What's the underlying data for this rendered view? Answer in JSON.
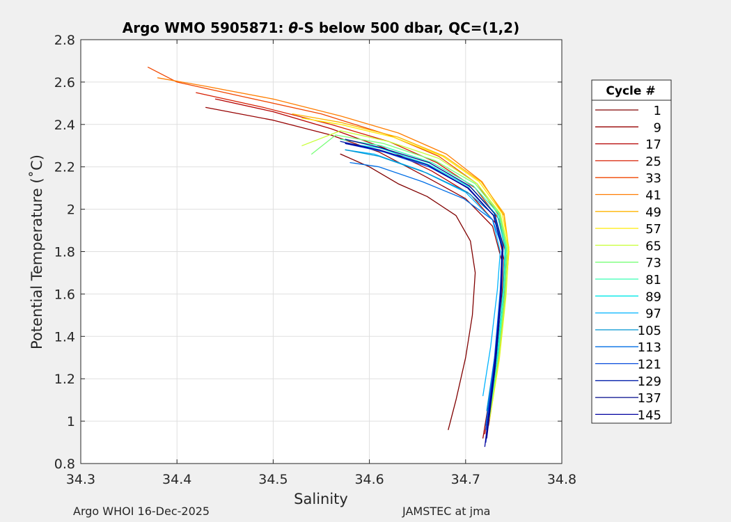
{
  "chart_data": {
    "type": "line",
    "title_parts": [
      "Argo WMO 5905871: ",
      "θ",
      "-S below 500 dbar,  QC=(1,2)"
    ],
    "xlabel": "Salinity",
    "ylabel": "Potential Temperature (˚C)",
    "xlim": [
      34.3,
      34.8
    ],
    "ylim": [
      0.8,
      2.8
    ],
    "xticks": [
      34.3,
      34.4,
      34.5,
      34.6,
      34.7,
      34.8
    ],
    "xtick_labels": [
      "34.3",
      "34.4",
      "34.5",
      "34.6",
      "34.7",
      "34.8"
    ],
    "yticks": [
      0.8,
      1,
      1.2,
      1.4,
      1.6,
      1.8,
      2,
      2.2,
      2.4,
      2.6,
      2.8
    ],
    "ytick_labels": [
      "0.8",
      "1",
      "1.2",
      "1.4",
      "1.6",
      "1.8",
      "2",
      "2.2",
      "2.4",
      "2.6",
      "2.8"
    ],
    "grid": true,
    "legend": {
      "title": "Cycle #",
      "placement": "right",
      "entries": [
        {
          "label": "1",
          "color": "#800000"
        },
        {
          "label": "9",
          "color": "#960000"
        },
        {
          "label": "17",
          "color": "#b40000"
        },
        {
          "label": "25",
          "color": "#d71e00"
        },
        {
          "label": "33",
          "color": "#f04600"
        },
        {
          "label": "41",
          "color": "#ff7d00"
        },
        {
          "label": "49",
          "color": "#ffb400"
        },
        {
          "label": "57",
          "color": "#ffeb0a"
        },
        {
          "label": "65",
          "color": "#c8ff37"
        },
        {
          "label": "73",
          "color": "#78ff78"
        },
        {
          "label": "81",
          "color": "#37ffb4"
        },
        {
          "label": "89",
          "color": "#00e6e6"
        },
        {
          "label": "97",
          "color": "#00b4ff"
        },
        {
          "label": "105",
          "color": "#0096d2"
        },
        {
          "label": "113",
          "color": "#006ee6"
        },
        {
          "label": "121",
          "color": "#0046dc"
        },
        {
          "label": "129",
          "color": "#001eaa"
        },
        {
          "label": "137",
          "color": "#000a8c"
        },
        {
          "label": "145",
          "color": "#0000a0"
        }
      ]
    },
    "series": [
      {
        "name": "1",
        "color": "#800000",
        "points": [
          [
            34.682,
            0.96
          ],
          [
            34.69,
            1.1
          ],
          [
            34.7,
            1.3
          ],
          [
            34.707,
            1.5
          ],
          [
            34.71,
            1.7
          ],
          [
            34.705,
            1.85
          ],
          [
            34.69,
            1.97
          ],
          [
            34.66,
            2.06
          ],
          [
            34.63,
            2.12
          ],
          [
            34.6,
            2.2
          ],
          [
            34.57,
            2.26
          ]
        ]
      },
      {
        "name": "9",
        "color": "#960000",
        "points": [
          [
            34.718,
            0.92
          ],
          [
            34.728,
            1.2
          ],
          [
            34.735,
            1.5
          ],
          [
            34.738,
            1.75
          ],
          [
            34.728,
            1.92
          ],
          [
            34.7,
            2.05
          ],
          [
            34.66,
            2.15
          ],
          [
            34.61,
            2.27
          ],
          [
            34.56,
            2.35
          ],
          [
            34.5,
            2.42
          ],
          [
            34.43,
            2.48
          ]
        ]
      },
      {
        "name": "17",
        "color": "#b40000",
        "points": [
          [
            34.72,
            0.94
          ],
          [
            34.73,
            1.22
          ],
          [
            34.737,
            1.52
          ],
          [
            34.74,
            1.76
          ],
          [
            34.732,
            1.93
          ],
          [
            34.705,
            2.07
          ],
          [
            34.665,
            2.18
          ],
          [
            34.615,
            2.29
          ],
          [
            34.56,
            2.38
          ],
          [
            34.5,
            2.46
          ],
          [
            34.44,
            2.52
          ]
        ]
      },
      {
        "name": "25",
        "color": "#d71e00",
        "points": [
          [
            34.722,
            0.95
          ],
          [
            34.732,
            1.24
          ],
          [
            34.739,
            1.54
          ],
          [
            34.742,
            1.78
          ],
          [
            34.735,
            1.95
          ],
          [
            34.71,
            2.1
          ],
          [
            34.67,
            2.22
          ],
          [
            34.62,
            2.32
          ],
          [
            34.56,
            2.4
          ],
          [
            34.49,
            2.48
          ],
          [
            34.42,
            2.55
          ]
        ]
      },
      {
        "name": "33",
        "color": "#f04600",
        "points": [
          [
            34.723,
            0.97
          ],
          [
            34.733,
            1.25
          ],
          [
            34.74,
            1.55
          ],
          [
            34.743,
            1.79
          ],
          [
            34.736,
            1.96
          ],
          [
            34.712,
            2.12
          ],
          [
            34.672,
            2.25
          ],
          [
            34.62,
            2.35
          ],
          [
            34.55,
            2.45
          ],
          [
            34.47,
            2.53
          ],
          [
            34.4,
            2.6
          ],
          [
            34.37,
            2.67
          ]
        ]
      },
      {
        "name": "41",
        "color": "#ff7d00",
        "points": [
          [
            34.724,
            0.98
          ],
          [
            34.734,
            1.27
          ],
          [
            34.741,
            1.57
          ],
          [
            34.745,
            1.8
          ],
          [
            34.74,
            1.97
          ],
          [
            34.717,
            2.13
          ],
          [
            34.68,
            2.26
          ],
          [
            34.63,
            2.36
          ],
          [
            34.57,
            2.44
          ],
          [
            34.5,
            2.52
          ],
          [
            34.43,
            2.58
          ],
          [
            34.38,
            2.62
          ]
        ]
      },
      {
        "name": "49",
        "color": "#ffb400",
        "points": [
          [
            34.724,
            1.0
          ],
          [
            34.734,
            1.28
          ],
          [
            34.741,
            1.58
          ],
          [
            34.745,
            1.81
          ],
          [
            34.74,
            1.98
          ],
          [
            34.716,
            2.13
          ],
          [
            34.678,
            2.25
          ],
          [
            34.63,
            2.34
          ],
          [
            34.57,
            2.41
          ],
          [
            34.52,
            2.45
          ]
        ]
      },
      {
        "name": "57",
        "color": "#ffeb0a",
        "points": [
          [
            34.725,
            1.01
          ],
          [
            34.735,
            1.29
          ],
          [
            34.742,
            1.59
          ],
          [
            34.745,
            1.82
          ],
          [
            34.738,
            1.98
          ],
          [
            34.714,
            2.13
          ],
          [
            34.676,
            2.25
          ],
          [
            34.625,
            2.34
          ],
          [
            34.57,
            2.4
          ],
          [
            34.53,
            2.43
          ]
        ]
      },
      {
        "name": "65",
        "color": "#c8ff37",
        "points": [
          [
            34.725,
            1.02
          ],
          [
            34.735,
            1.3
          ],
          [
            34.742,
            1.6
          ],
          [
            34.744,
            1.82
          ],
          [
            34.736,
            1.98
          ],
          [
            34.712,
            2.12
          ],
          [
            34.672,
            2.24
          ],
          [
            34.62,
            2.32
          ],
          [
            34.57,
            2.37
          ],
          [
            34.53,
            2.3
          ]
        ]
      },
      {
        "name": "73",
        "color": "#78ff78",
        "points": [
          [
            34.725,
            1.03
          ],
          [
            34.734,
            1.31
          ],
          [
            34.741,
            1.61
          ],
          [
            34.743,
            1.82
          ],
          [
            34.735,
            1.98
          ],
          [
            34.71,
            2.12
          ],
          [
            34.668,
            2.23
          ],
          [
            34.615,
            2.31
          ],
          [
            34.565,
            2.35
          ],
          [
            34.54,
            2.26
          ]
        ]
      },
      {
        "name": "81",
        "color": "#37ffb4",
        "points": [
          [
            34.725,
            1.04
          ],
          [
            34.734,
            1.32
          ],
          [
            34.74,
            1.62
          ],
          [
            34.742,
            1.82
          ],
          [
            34.734,
            1.98
          ],
          [
            34.708,
            2.11
          ],
          [
            34.665,
            2.22
          ],
          [
            34.612,
            2.3
          ],
          [
            34.57,
            2.33
          ]
        ]
      },
      {
        "name": "89",
        "color": "#00e6e6",
        "points": [
          [
            34.724,
            1.04
          ],
          [
            34.733,
            1.32
          ],
          [
            34.739,
            1.62
          ],
          [
            34.741,
            1.82
          ],
          [
            34.733,
            1.97
          ],
          [
            34.706,
            2.1
          ],
          [
            34.662,
            2.21
          ],
          [
            34.61,
            2.29
          ],
          [
            34.575,
            2.31
          ]
        ]
      },
      {
        "name": "97",
        "color": "#00b4ff",
        "points": [
          [
            34.718,
            1.12
          ],
          [
            34.726,
            1.35
          ],
          [
            34.733,
            1.62
          ],
          [
            34.736,
            1.8
          ],
          [
            34.728,
            1.95
          ],
          [
            34.7,
            2.08
          ],
          [
            34.655,
            2.18
          ],
          [
            34.605,
            2.26
          ],
          [
            34.575,
            2.28
          ]
        ]
      },
      {
        "name": "105",
        "color": "#0096d2",
        "points": [
          [
            34.722,
            1.05
          ],
          [
            34.731,
            1.33
          ],
          [
            34.737,
            1.62
          ],
          [
            34.739,
            1.82
          ],
          [
            34.73,
            1.97
          ],
          [
            34.702,
            2.08
          ],
          [
            34.66,
            2.17
          ],
          [
            34.61,
            2.25
          ],
          [
            34.575,
            2.28
          ]
        ]
      },
      {
        "name": "113",
        "color": "#006ee6",
        "points": [
          [
            34.721,
            0.98
          ],
          [
            34.73,
            1.3
          ],
          [
            34.736,
            1.62
          ],
          [
            34.738,
            1.82
          ],
          [
            34.728,
            1.95
          ],
          [
            34.698,
            2.05
          ],
          [
            34.655,
            2.13
          ],
          [
            34.61,
            2.2
          ],
          [
            34.58,
            2.22
          ]
        ]
      },
      {
        "name": "121",
        "color": "#0046dc",
        "points": [
          [
            34.721,
            0.96
          ],
          [
            34.73,
            1.28
          ],
          [
            34.736,
            1.6
          ],
          [
            34.738,
            1.82
          ],
          [
            34.729,
            1.97
          ],
          [
            34.703,
            2.1
          ],
          [
            34.662,
            2.2
          ],
          [
            34.615,
            2.27
          ],
          [
            34.575,
            2.31
          ]
        ]
      },
      {
        "name": "129",
        "color": "#001eaa",
        "points": [
          [
            34.721,
            0.9
          ],
          [
            34.73,
            1.25
          ],
          [
            34.736,
            1.58
          ],
          [
            34.738,
            1.82
          ],
          [
            34.729,
            1.97
          ],
          [
            34.703,
            2.1
          ],
          [
            34.66,
            2.21
          ],
          [
            34.61,
            2.28
          ],
          [
            34.57,
            2.32
          ]
        ]
      },
      {
        "name": "137",
        "color": "#000a8c",
        "points": [
          [
            34.722,
            0.92
          ],
          [
            34.731,
            1.26
          ],
          [
            34.737,
            1.59
          ],
          [
            34.739,
            1.83
          ],
          [
            34.73,
            1.98
          ],
          [
            34.704,
            2.11
          ],
          [
            34.662,
            2.22
          ],
          [
            34.612,
            2.29
          ],
          [
            34.575,
            2.33
          ]
        ]
      },
      {
        "name": "145",
        "color": "#0000a0",
        "points": [
          [
            34.72,
            0.88
          ],
          [
            34.729,
            1.22
          ],
          [
            34.736,
            1.56
          ],
          [
            34.738,
            1.82
          ],
          [
            34.729,
            1.97
          ],
          [
            34.702,
            2.1
          ],
          [
            34.66,
            2.21
          ],
          [
            34.61,
            2.28
          ],
          [
            34.575,
            2.31
          ]
        ]
      }
    ]
  },
  "footer": {
    "left": "Argo WHOI 16-Dec-2025",
    "right": "JAMSTEC at jma"
  }
}
